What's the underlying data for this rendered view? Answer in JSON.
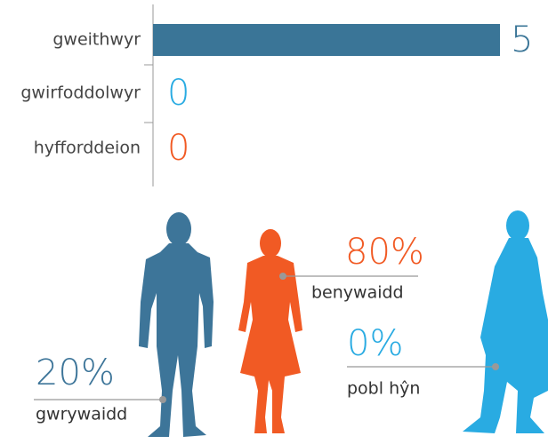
{
  "chart_data": {
    "type": "bar",
    "categories": [
      "gweithwyr",
      "gwirfoddolwyr",
      "hyfforddeion"
    ],
    "values": [
      5,
      0,
      0
    ],
    "colors": [
      "#3a7597",
      "#29abe2",
      "#f15a24"
    ]
  },
  "figures": [
    {
      "value": "20%",
      "label": "gwrywaidd",
      "color": "#3d7599"
    },
    {
      "value": "80%",
      "label": "benywaidd",
      "color": "#f15a24"
    },
    {
      "value": "0%",
      "label": "pobl hŷn",
      "color": "#29abe2"
    }
  ]
}
